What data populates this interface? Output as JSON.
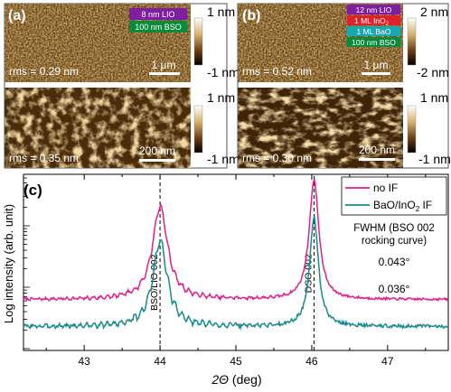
{
  "panel_a": {
    "label": "(a)",
    "legend": [
      {
        "text": "8 nm LIO",
        "color": "#7d1fa0"
      },
      {
        "text": "100 nm BSO",
        "color": "#0a8a3a"
      }
    ],
    "top": {
      "rms": "rms = 0.29 nm",
      "scalebar": "1 μm",
      "cbar_top": "1 nm",
      "cbar_bottom": "-1 nm"
    },
    "bottom": {
      "rms": "rms = 0.35 nm",
      "scalebar": "200 nm",
      "cbar_top": "1 nm",
      "cbar_bottom": "-1 nm"
    }
  },
  "panel_b": {
    "label": "(b)",
    "legend": [
      {
        "text": "12 nm LIO",
        "color": "#7d1fa0"
      },
      {
        "text": "1 ML InO",
        "sub": "2",
        "color": "#e0202a"
      },
      {
        "text": "1 ML BaO",
        "color": "#19a7b0"
      },
      {
        "text": "100 nm BSO",
        "color": "#0a8a3a"
      }
    ],
    "top": {
      "rms": "rms = 0.52 nm",
      "scalebar": "1 μm",
      "cbar_top": "2 nm",
      "cbar_bottom": "-2 nm"
    },
    "bottom": {
      "rms": "rms = 0.30 nm",
      "scalebar": "200 nm",
      "cbar_top": "1 nm",
      "cbar_bottom": "-1 nm"
    }
  },
  "panel_c": {
    "label": "(c)"
  },
  "chart_data": {
    "type": "line",
    "xlabel_symbol": "2Θ",
    "xlabel_unit": " (deg)",
    "ylabel": "Log intensity (arb. unit)",
    "xlim": [
      42.2,
      47.8
    ],
    "x_ticks": [
      43,
      44,
      45,
      46,
      47
    ],
    "y_scale": "log",
    "legend_position": "top-right",
    "series": [
      {
        "name": "no IF",
        "color": "#e0218a",
        "base": 0.28,
        "peaks": [
          {
            "x": 44.0,
            "h": 0.62,
            "w": 0.3
          },
          {
            "x": 46.03,
            "h": 0.8,
            "w": 0.19
          }
        ],
        "wiggle": 0.015,
        "seed": 7
      },
      {
        "name": "BaO/InO",
        "name_sub": "2",
        "name_suffix": " IF",
        "color": "#1a8a8c",
        "base": 0.1,
        "peaks": [
          {
            "x": 44.0,
            "h": 0.57,
            "w": 0.28
          },
          {
            "x": 46.03,
            "h": 0.73,
            "w": 0.17
          }
        ],
        "wiggle": 0.022,
        "seed": 3
      }
    ],
    "reference_lines": [
      {
        "x": 44.0,
        "label": "BSO/LIO 002"
      },
      {
        "x": 46.03,
        "label": "DSO 002"
      }
    ],
    "annotations": {
      "fwhm_title_1": "FWHM (BSO 002",
      "fwhm_title_2": "rocking curve)",
      "fwhm_no_if": "0.043°",
      "fwhm_if": "0.036°"
    }
  }
}
